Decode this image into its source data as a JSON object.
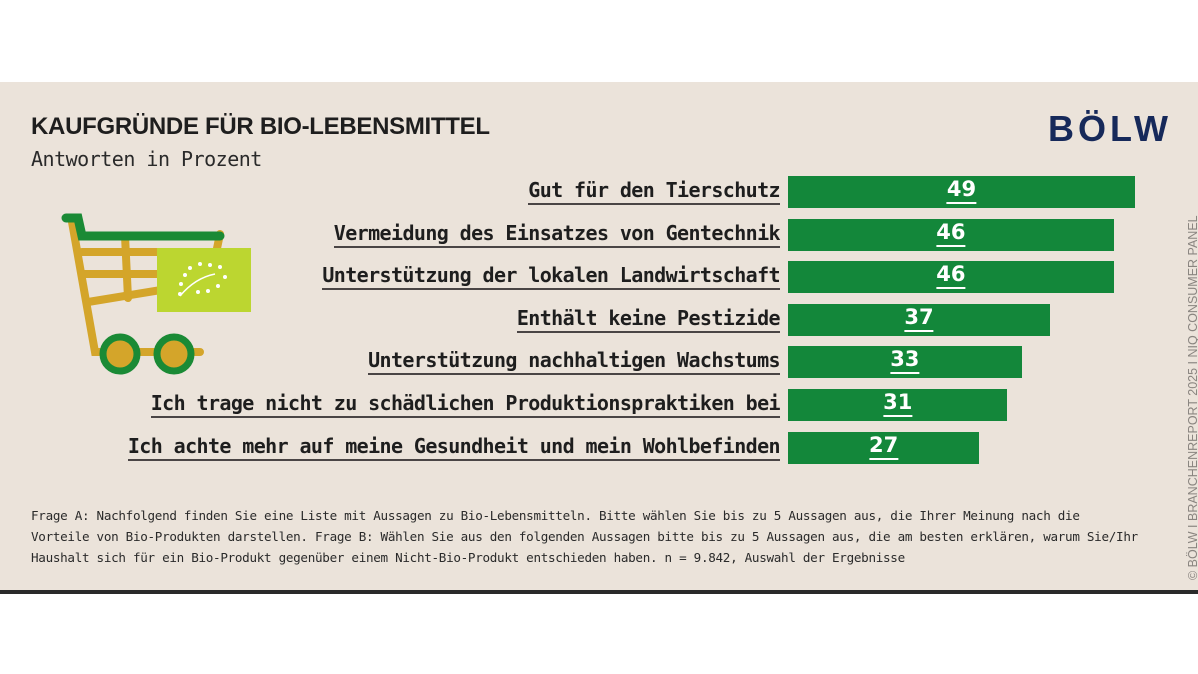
{
  "chart_data": {
    "type": "bar",
    "orientation": "horizontal",
    "title": "KAUFGRÜNDE FÜR BIO-LEBENSMITTEL",
    "subtitle": "Antworten in Prozent",
    "categories": [
      "Gut für den Tierschutz",
      "Vermeidung des Einsatzes von Gentechnik",
      "Unterstützung der lokalen Landwirtschaft",
      "Enthält keine Pestizide",
      "Unterstützung nachhaltigen Wachstums",
      "Ich trage nicht zu schädlichen Produktionspraktiken bei",
      "Ich achte mehr auf meine Gesundheit und mein Wohlbefinden"
    ],
    "values": [
      49,
      46,
      46,
      37,
      33,
      31,
      27
    ],
    "bar_color": "#13873a",
    "grid": false
  },
  "logo": "BÖLW",
  "footnote": "Frage A: Nachfolgend finden Sie eine Liste mit Aussagen zu Bio-Lebensmitteln. Bitte wählen Sie bis zu 5 Aussagen aus, die Ihrer Meinung nach die Vorteile von Bio-Produkten darstellen. Frage B: Wählen Sie aus den folgenden Aussagen bitte bis zu 5 Aussagen aus, die am besten erklären, warum Sie/Ihr Haushalt sich für ein Bio-Produkt gegenüber einem Nicht-Bio-Produkt entschieden haben. n = 9.842, Auswahl der Ergebnisse",
  "copyright": "© BÖLW I BRANCHENREPORT 2025 I NIQ CONSUMER PANEL",
  "colors": {
    "background": "#ebe3da",
    "bar": "#13873a",
    "logo": "#16295a",
    "eu_leaf": "#bcd630",
    "cart": "#d4a52a"
  }
}
